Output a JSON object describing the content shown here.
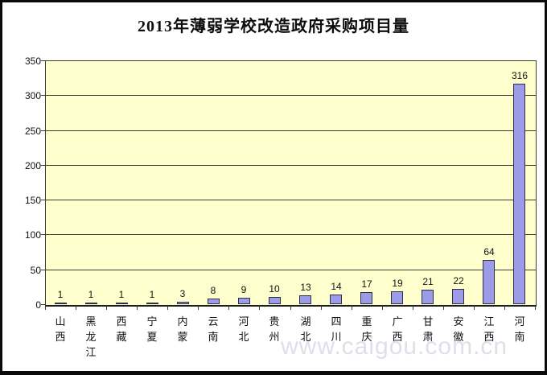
{
  "chart_data": {
    "type": "bar",
    "title": "2013年薄弱学校改造政府采购项目量",
    "categories": [
      "山西",
      "黑龙江",
      "西藏",
      "宁夏",
      "内蒙",
      "云南",
      "河北",
      "贵州",
      "湖北",
      "四川",
      "重庆",
      "广西",
      "甘肃",
      "安徽",
      "江西",
      "河南"
    ],
    "values": [
      1,
      1,
      1,
      1,
      3,
      8,
      9,
      10,
      13,
      14,
      17,
      19,
      21,
      22,
      64,
      316
    ],
    "xlabel": "",
    "ylabel": "",
    "ylim": [
      0,
      350
    ],
    "yticks": [
      0,
      50,
      100,
      150,
      200,
      250,
      300,
      350
    ],
    "grid": true,
    "legend_position": "none",
    "data_labels": true,
    "x_label_orientation": "vertical"
  },
  "watermark": "www.caigou.com.cn",
  "colors": {
    "plot_bg": "#FFFFCE",
    "bar_fill": "#9B9BE8",
    "bar_border": "#2E2E45",
    "gridline": "#3C3C30",
    "axis_text": "#111111",
    "frame": "#0A0A0A",
    "watermark": "#C2C7D9"
  }
}
